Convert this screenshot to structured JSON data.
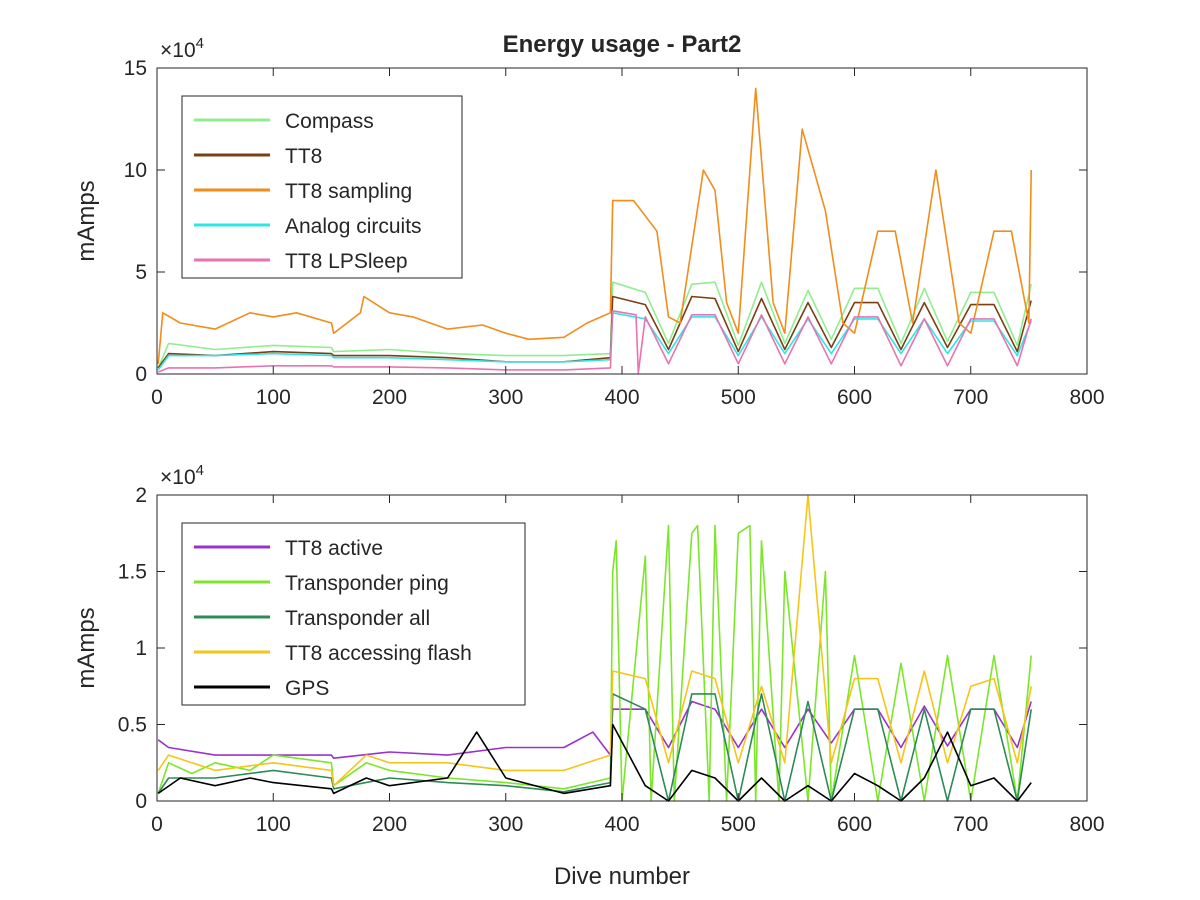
{
  "figure": {
    "title": "Energy usage - Part2",
    "xlabel": "Dive number"
  },
  "chart_data": [
    {
      "type": "line",
      "title": "Energy usage - Part2",
      "xlabel": "",
      "ylabel": "mAmps",
      "exponent_label": "×10",
      "exponent_power": "4",
      "xlim": [
        0,
        800
      ],
      "ylim": [
        0,
        150000
      ],
      "xticks": [
        0,
        100,
        200,
        300,
        400,
        500,
        600,
        700,
        800
      ],
      "yticks": [
        0,
        50000,
        100000,
        150000
      ],
      "xtick_labels": [
        "0",
        "100",
        "200",
        "300",
        "400",
        "500",
        "600",
        "700",
        "800"
      ],
      "ytick_labels": [
        "0",
        "5",
        "10",
        "15"
      ],
      "grid": false,
      "legend_position": "top-left",
      "series": [
        {
          "name": "Compass",
          "color": "#90EE90",
          "x": [
            1,
            10,
            50,
            100,
            150,
            152,
            200,
            250,
            300,
            350,
            390,
            392,
            420,
            440,
            460,
            480,
            500,
            520,
            540,
            560,
            580,
            600,
            620,
            640,
            660,
            680,
            700,
            720,
            740,
            752
          ],
          "y": [
            3000,
            15000,
            12000,
            14000,
            13000,
            11000,
            12000,
            10000,
            9000,
            9000,
            10000,
            45000,
            40000,
            15000,
            44000,
            45000,
            14000,
            45000,
            15000,
            41000,
            17000,
            42000,
            42000,
            15000,
            42000,
            16000,
            40000,
            40000,
            14000,
            44000
          ]
        },
        {
          "name": "TT8",
          "color": "#7B3F14",
          "x": [
            1,
            10,
            50,
            100,
            150,
            152,
            200,
            250,
            300,
            350,
            390,
            392,
            420,
            440,
            460,
            480,
            500,
            520,
            540,
            560,
            580,
            600,
            620,
            640,
            660,
            680,
            700,
            720,
            740,
            752
          ],
          "y": [
            3000,
            10000,
            9000,
            11000,
            10000,
            9000,
            9000,
            8000,
            6000,
            6000,
            8000,
            38000,
            34000,
            12000,
            38000,
            37000,
            11000,
            37000,
            12000,
            35000,
            13000,
            35000,
            35000,
            12000,
            35000,
            13000,
            34000,
            34000,
            11000,
            36000
          ]
        },
        {
          "name": "TT8 sampling",
          "color": "#F28C1A",
          "x": [
            1,
            5,
            20,
            50,
            80,
            100,
            120,
            150,
            152,
            175,
            178,
            200,
            220,
            250,
            280,
            300,
            320,
            350,
            370,
            390,
            392,
            410,
            430,
            440,
            450,
            470,
            480,
            490,
            500,
            515,
            530,
            540,
            555,
            575,
            590,
            600,
            620,
            635,
            650,
            670,
            690,
            700,
            720,
            735,
            750,
            752
          ],
          "y": [
            5000,
            30000,
            25000,
            22000,
            30000,
            28000,
            30000,
            25000,
            20000,
            30000,
            38000,
            30000,
            28000,
            22000,
            24000,
            20000,
            17000,
            18000,
            25000,
            30000,
            85000,
            85000,
            70000,
            28000,
            25000,
            100000,
            90000,
            35000,
            20000,
            140000,
            35000,
            20000,
            120000,
            80000,
            25000,
            20000,
            70000,
            70000,
            25000,
            100000,
            25000,
            20000,
            70000,
            70000,
            25000,
            100000
          ]
        },
        {
          "name": "Analog circuits",
          "color": "#2EE6E6",
          "x": [
            1,
            10,
            50,
            100,
            150,
            152,
            200,
            250,
            300,
            350,
            390,
            392,
            420,
            440,
            460,
            480,
            500,
            520,
            540,
            560,
            580,
            600,
            620,
            640,
            660,
            680,
            700,
            720,
            740,
            752
          ],
          "y": [
            2000,
            9000,
            9000,
            10000,
            9000,
            8000,
            8000,
            7000,
            6000,
            6000,
            7000,
            30000,
            27000,
            10000,
            28000,
            28000,
            9000,
            28000,
            10000,
            27000,
            10000,
            27000,
            27000,
            10000,
            27000,
            10000,
            26000,
            26000,
            9000,
            26000
          ]
        },
        {
          "name": "TT8 LPSleep",
          "color": "#E873B0",
          "x": [
            1,
            10,
            50,
            100,
            150,
            152,
            200,
            250,
            300,
            350,
            390,
            392,
            412,
            414,
            420,
            440,
            460,
            480,
            500,
            520,
            540,
            560,
            580,
            600,
            620,
            640,
            660,
            680,
            700,
            720,
            740,
            752
          ],
          "y": [
            1000,
            3000,
            3000,
            4000,
            4000,
            3500,
            3500,
            3000,
            2000,
            2000,
            3000,
            31000,
            29000,
            500,
            28000,
            5000,
            29000,
            29000,
            5000,
            29000,
            5000,
            28000,
            5000,
            28000,
            28000,
            4000,
            27000,
            4000,
            27000,
            27000,
            4000,
            27000
          ]
        }
      ]
    },
    {
      "type": "line",
      "title": "",
      "xlabel": "Dive number",
      "ylabel": "mAmps",
      "exponent_label": "×10",
      "exponent_power": "4",
      "xlim": [
        0,
        800
      ],
      "ylim": [
        0,
        20000
      ],
      "xticks": [
        0,
        100,
        200,
        300,
        400,
        500,
        600,
        700,
        800
      ],
      "yticks": [
        0,
        5000,
        10000,
        15000,
        20000
      ],
      "xtick_labels": [
        "0",
        "100",
        "200",
        "300",
        "400",
        "500",
        "600",
        "700",
        "800"
      ],
      "ytick_labels": [
        "0",
        "0.5",
        "1",
        "1.5",
        "2"
      ],
      "grid": false,
      "legend_position": "top-left",
      "series": [
        {
          "name": "TT8 active",
          "color": "#9932CC",
          "x": [
            1,
            10,
            50,
            100,
            150,
            152,
            200,
            250,
            300,
            350,
            375,
            390,
            392,
            420,
            440,
            460,
            480,
            500,
            520,
            540,
            560,
            580,
            600,
            620,
            640,
            660,
            680,
            700,
            720,
            740,
            752
          ],
          "y": [
            4000,
            3500,
            3000,
            3000,
            3000,
            2800,
            3200,
            3000,
            3500,
            3500,
            4500,
            3000,
            6000,
            6000,
            3500,
            6500,
            6000,
            3500,
            6000,
            3500,
            6000,
            3800,
            6000,
            6000,
            3500,
            6200,
            3600,
            6000,
            6000,
            3500,
            6500
          ]
        },
        {
          "name": "Transponder ping",
          "color": "#7CE62A",
          "x": [
            1,
            10,
            30,
            50,
            80,
            100,
            150,
            152,
            180,
            200,
            250,
            300,
            350,
            390,
            392,
            395,
            400,
            420,
            425,
            440,
            445,
            460,
            465,
            475,
            480,
            490,
            500,
            510,
            515,
            520,
            535,
            540,
            560,
            575,
            580,
            600,
            620,
            640,
            660,
            680,
            700,
            720,
            740,
            752
          ],
          "y": [
            500,
            2500,
            1800,
            2500,
            2000,
            3000,
            2500,
            1000,
            2500,
            2000,
            1500,
            1200,
            800,
            1500,
            15000,
            17000,
            0,
            16000,
            0,
            18000,
            0,
            17500,
            18000,
            0,
            18000,
            0,
            17500,
            18000,
            0,
            17000,
            0,
            15000,
            0,
            15000,
            0,
            9500,
            0,
            9000,
            0,
            9500,
            0,
            9500,
            0,
            9500
          ]
        },
        {
          "name": "Transponder all",
          "color": "#2E8B57",
          "x": [
            1,
            10,
            50,
            100,
            150,
            152,
            200,
            250,
            300,
            350,
            390,
            392,
            420,
            440,
            460,
            480,
            500,
            520,
            540,
            560,
            580,
            600,
            620,
            640,
            660,
            680,
            700,
            720,
            740,
            752
          ],
          "y": [
            500,
            1500,
            1500,
            2000,
            1500,
            800,
            1500,
            1200,
            1000,
            600,
            1200,
            7000,
            6000,
            0,
            7000,
            7000,
            0,
            7000,
            0,
            6500,
            0,
            6000,
            6000,
            0,
            6000,
            0,
            6000,
            6000,
            0,
            6000
          ]
        },
        {
          "name": "TT8 accessing flash",
          "color": "#F5C518",
          "x": [
            1,
            10,
            50,
            100,
            150,
            152,
            180,
            200,
            250,
            300,
            350,
            390,
            392,
            420,
            440,
            460,
            480,
            500,
            520,
            540,
            560,
            580,
            600,
            620,
            640,
            660,
            680,
            700,
            720,
            740,
            752
          ],
          "y": [
            2000,
            3000,
            2000,
            2500,
            2000,
            1000,
            3000,
            2500,
            2500,
            2000,
            2000,
            3000,
            8500,
            8000,
            2500,
            8500,
            8000,
            2500,
            7500,
            2500,
            20000,
            2500,
            8000,
            8000,
            2500,
            8500,
            2500,
            7500,
            8000,
            2500,
            7500
          ]
        },
        {
          "name": "GPS",
          "color": "#000000",
          "x": [
            1,
            20,
            50,
            80,
            100,
            150,
            152,
            180,
            200,
            250,
            275,
            300,
            350,
            390,
            392,
            420,
            440,
            460,
            480,
            500,
            520,
            540,
            560,
            580,
            600,
            620,
            640,
            660,
            680,
            700,
            720,
            740,
            752
          ],
          "y": [
            500,
            1500,
            1000,
            1500,
            1200,
            800,
            500,
            1500,
            1000,
            1500,
            4500,
            1500,
            500,
            1000,
            5000,
            1000,
            0,
            2000,
            1500,
            0,
            1500,
            0,
            1000,
            0,
            1800,
            1000,
            0,
            1500,
            4500,
            1000,
            1500,
            0,
            1200
          ]
        }
      ]
    }
  ]
}
